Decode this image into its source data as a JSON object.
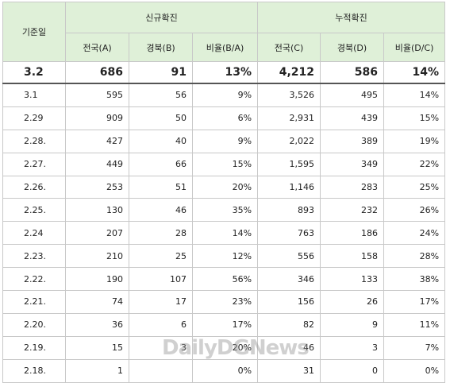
{
  "headers": {
    "date": "기준일",
    "group_new": "신규확진",
    "group_cum": "누적확진",
    "sub": [
      "전국(A)",
      "경북(B)",
      "비율(B/A)",
      "전국(C)",
      "경북(D)",
      "비율(D/C)"
    ]
  },
  "rows": [
    [
      "3.2",
      "686",
      "91",
      "13%",
      "4,212",
      "586",
      "14%"
    ],
    [
      "3.1",
      "595",
      "56",
      "9%",
      "3,526",
      "495",
      "14%"
    ],
    [
      "2.29",
      "909",
      "50",
      "6%",
      "2,931",
      "439",
      "15%"
    ],
    [
      "2.28.",
      "427",
      "40",
      "9%",
      "2,022",
      "389",
      "19%"
    ],
    [
      "2.27.",
      "449",
      "66",
      "15%",
      "1,595",
      "349",
      "22%"
    ],
    [
      "2.26.",
      "253",
      "51",
      "20%",
      "1,146",
      "283",
      "25%"
    ],
    [
      "2.25.",
      "130",
      "46",
      "35%",
      "893",
      "232",
      "26%"
    ],
    [
      "2.24",
      "207",
      "28",
      "14%",
      "763",
      "186",
      "24%"
    ],
    [
      "2.23.",
      "210",
      "25",
      "12%",
      "556",
      "158",
      "28%"
    ],
    [
      "2.22.",
      "190",
      "107",
      "56%",
      "346",
      "133",
      "38%"
    ],
    [
      "2.21.",
      "74",
      "17",
      "23%",
      "156",
      "26",
      "17%"
    ],
    [
      "2.20.",
      "36",
      "6",
      "17%",
      "82",
      "9",
      "11%"
    ],
    [
      "2.19.",
      "15",
      "3",
      "20%",
      "46",
      "3",
      "7%"
    ],
    [
      "2.18.",
      "1",
      "",
      "0%",
      "31",
      "0",
      "0%"
    ]
  ],
  "watermark": "DailyDGNews",
  "colors": {
    "header_bg": "#dff0d8",
    "border": "#c8c8c8"
  }
}
